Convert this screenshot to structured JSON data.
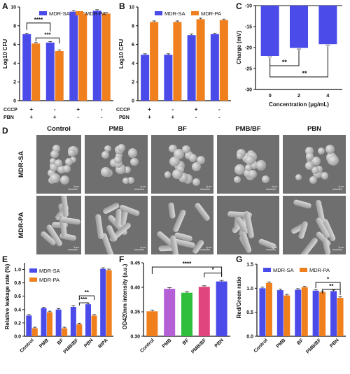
{
  "colors": {
    "sa": "#4B4BEA",
    "pa": "#F07F1E",
    "pmb": "#B55FD6",
    "bf": "#2FBF3C",
    "sem_bg": "#6f6f6f"
  },
  "chart_data": [
    {
      "panel": "A",
      "type": "bar",
      "ylabel": "Log10 CFU",
      "ylim": [
        0,
        10
      ],
      "yticks": [
        0,
        2,
        4,
        6,
        8,
        10
      ],
      "row_labels": [
        "CCCP",
        "PBN"
      ],
      "signs": [
        [
          "+",
          "+"
        ],
        [
          "-",
          "+"
        ],
        [
          "+",
          "-"
        ],
        [
          "-",
          "-"
        ]
      ],
      "series": [
        {
          "name": "MDR-SA",
          "values": [
            7.1,
            6.2,
            9.5,
            9.6
          ]
        },
        {
          "name": "MDR-PA",
          "values": [
            6.1,
            5.3,
            9.3,
            9.3
          ]
        }
      ],
      "significance": [
        {
          "label": "****",
          "from": [
            0,
            0
          ],
          "to": [
            1,
            0
          ]
        },
        {
          "label": "***",
          "from": [
            0,
            1
          ],
          "to": [
            1,
            1
          ]
        }
      ]
    },
    {
      "panel": "B",
      "type": "bar",
      "ylabel": "Log10 CFU",
      "ylim": [
        0,
        10
      ],
      "yticks": [
        0,
        2,
        4,
        6,
        8,
        10
      ],
      "row_labels": [
        "CCCP",
        "PBN"
      ],
      "signs": [
        [
          "+",
          "+"
        ],
        [
          "-",
          "+"
        ],
        [
          "+",
          "-"
        ],
        [
          "-",
          "-"
        ]
      ],
      "series": [
        {
          "name": "MDR-SA",
          "values": [
            4.9,
            4.9,
            7.0,
            7.1
          ]
        },
        {
          "name": "MDR-PA",
          "values": [
            8.4,
            8.4,
            8.7,
            8.6
          ]
        }
      ]
    },
    {
      "panel": "C",
      "type": "bar",
      "ylabel": "Charge (mV)",
      "xlabel": "Concentration (μg/mL)",
      "ylim": [
        -30,
        -10
      ],
      "yticks": [
        -30,
        -25,
        -20,
        -15,
        -10
      ],
      "categories": [
        "0",
        "2",
        "4"
      ],
      "values": [
        -22.0,
        -20.1,
        -19.2
      ],
      "significance": [
        {
          "label": "**",
          "from": 0,
          "to": 1
        },
        {
          "label": "**",
          "from": 0,
          "to": 2
        }
      ]
    },
    {
      "panel": "E",
      "type": "bar",
      "ylabel": "Relative leakage rate (%)",
      "ylim": [
        0,
        1.1
      ],
      "yticks": [
        "0.0",
        "0.2",
        "0.4",
        "0.6",
        "0.8",
        "1.0"
      ],
      "categories": [
        "Control",
        "PMB",
        "BF",
        "PMB/BF",
        "PBN",
        "RIPA"
      ],
      "series": [
        {
          "name": "MDR-SA",
          "values": [
            0.31,
            0.42,
            0.4,
            0.44,
            0.48,
            1.01
          ]
        },
        {
          "name": "MDR-PA",
          "values": [
            0.12,
            0.36,
            0.12,
            0.18,
            0.31,
            0.99
          ]
        }
      ],
      "significance": [
        {
          "label": "**",
          "from": [
            3,
            1
          ],
          "to": [
            4,
            1
          ]
        },
        {
          "label": "***",
          "from": [
            3,
            1
          ],
          "to": [
            4,
            0
          ]
        }
      ]
    },
    {
      "panel": "F",
      "type": "bar",
      "ylabel": "OD420nm intensity (a.u.)",
      "ylim": [
        0.3,
        0.45
      ],
      "yticks": [
        "0.30",
        "0.35",
        "0.40",
        "0.45"
      ],
      "categories": [
        "Control",
        "PMB",
        "BF",
        "PMB/BF",
        "PBN"
      ],
      "values": [
        0.351,
        0.397,
        0.389,
        0.401,
        0.412
      ],
      "bar_colors": [
        "#F07F1E",
        "#B55FD6",
        "#2FBF3C",
        "#E0457E",
        "#4B4BEA"
      ],
      "significance": [
        {
          "label": "****",
          "from": 0,
          "to": 4
        },
        {
          "label": "*",
          "from": 3,
          "to": 4
        }
      ]
    },
    {
      "panel": "G",
      "type": "bar",
      "ylabel": "Red/Green ratio",
      "ylim": [
        0,
        1.5
      ],
      "yticks": [
        "0.0",
        "0.5",
        "1.0",
        "1.5"
      ],
      "categories": [
        "Control",
        "PMB",
        "BF",
        "PMB/BF",
        "PBN"
      ],
      "series": [
        {
          "name": "MDR-SA",
          "values": [
            1.0,
            0.96,
            0.97,
            0.95,
            0.94
          ]
        },
        {
          "name": "MDR-PA",
          "values": [
            1.11,
            0.85,
            1.02,
            0.92,
            0.8
          ]
        }
      ],
      "significance": [
        {
          "label": "*",
          "from": [
            3,
            0
          ],
          "to": [
            4,
            1
          ]
        },
        {
          "label": "**",
          "from": [
            3,
            1
          ],
          "to": [
            4,
            1
          ]
        }
      ]
    }
  ],
  "panel_d": {
    "columns": [
      "Control",
      "PMB",
      "BF",
      "PMB/BF",
      "PBN"
    ],
    "rows": [
      "MDR-SA",
      "MDR-PA"
    ],
    "scale_label": "1μm"
  }
}
